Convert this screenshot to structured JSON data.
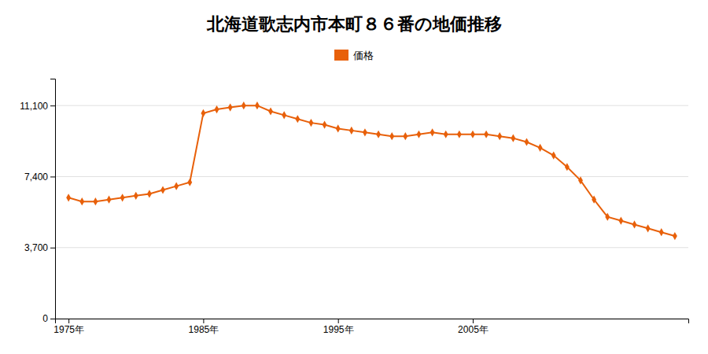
{
  "chart_data": {
    "type": "line",
    "title": "北海道歌志内市本町８６番の地価推移",
    "x": [
      1975,
      1976,
      1977,
      1978,
      1979,
      1980,
      1981,
      1982,
      1983,
      1984,
      1985,
      1986,
      1987,
      1988,
      1989,
      1990,
      1991,
      1992,
      1993,
      1994,
      1995,
      1996,
      1997,
      1998,
      1999,
      2000,
      2001,
      2002,
      2003,
      2004,
      2005,
      2006,
      2007,
      2008,
      2009,
      2010,
      2011,
      2012,
      2013,
      2014,
      2015,
      2016,
      2017,
      2018,
      2019,
      2020
    ],
    "series": [
      {
        "name": "価格",
        "color": "#e8600a",
        "marker": "diamond",
        "values": [
          6300,
          6100,
          6100,
          6200,
          6300,
          6400,
          6500,
          6700,
          6900,
          7100,
          10700,
          10900,
          11000,
          11100,
          11100,
          10800,
          10600,
          10400,
          10200,
          10100,
          9900,
          9800,
          9700,
          9600,
          9500,
          9500,
          9600,
          9700,
          9600,
          9600,
          9600,
          9600,
          9500,
          9400,
          9200,
          8900,
          8500,
          7900,
          7200,
          6200,
          5300,
          5100,
          4900,
          4700,
          4500,
          4300
        ]
      }
    ],
    "xlim": [
      1974,
      2021
    ],
    "xticks": [
      {
        "value": 1975,
        "label": "1975年"
      },
      {
        "value": 1985,
        "label": "1985年"
      },
      {
        "value": 1995,
        "label": "1995年"
      },
      {
        "value": 2005,
        "label": "2005年"
      }
    ],
    "ylim": [
      0,
      12500
    ],
    "yticks": [
      0,
      {
        "value": 3700,
        "label": "3,700"
      },
      {
        "value": 7400,
        "label": "7,400"
      },
      {
        "value": 11100,
        "label": "11,100"
      }
    ],
    "grid": "y",
    "legend": "top"
  }
}
